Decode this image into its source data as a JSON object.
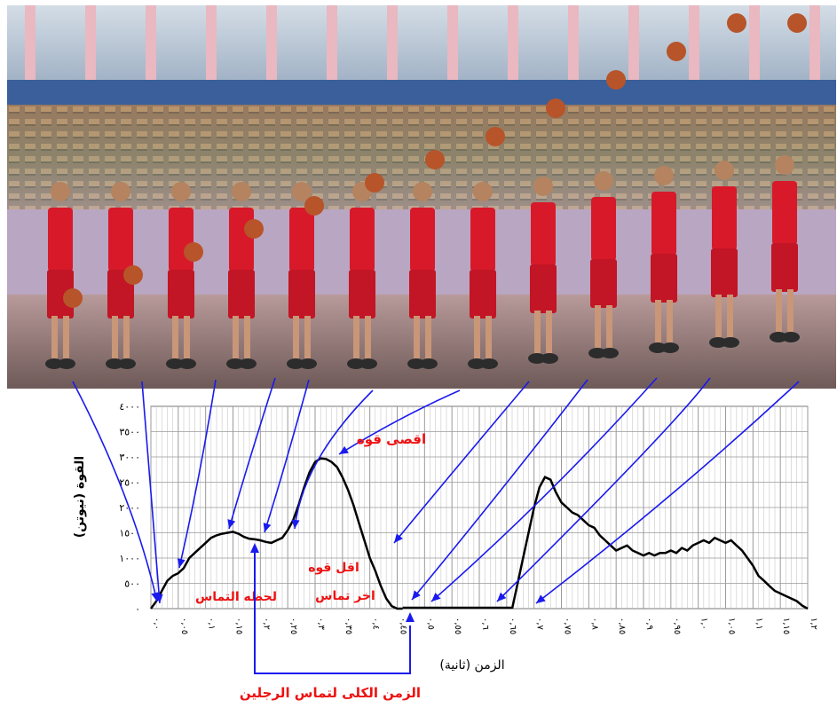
{
  "colors": {
    "arrow": "#1a1aee",
    "annotation": "#ee1111",
    "curve": "#000000",
    "grid_major": "#9a9a9a",
    "grid_minor": "#c8c8c8",
    "jersey": "#d8192a",
    "photo_wall": "#cfd6de"
  },
  "photo": {
    "player_count": 13,
    "description_icon": "basketball-jump-shot-sequence"
  },
  "chart_data": {
    "type": "line",
    "ylabel": "القوة (نيوتن)",
    "xlabel": "الزمن (ثانية)",
    "y_ticks": [
      "٠",
      "٥٠٠",
      "١٠٠٠",
      "١٥٠٠",
      "٢٠٠٠",
      "٢٥٠٠",
      "٣٠٠٠",
      "٣٥٠٠",
      "٤٠٠٠"
    ],
    "x_ticks": [
      "٠,٠",
      "٠,٠٥",
      "٠,١",
      "٠,١٥",
      "٠,٢",
      "٠,٢٥",
      "٠,٣",
      "٠,٣٥",
      "٠,٤",
      "٠,٤٥",
      "٠,٥",
      "٠,٥٥",
      "٠,٦",
      "٠,٦٥",
      "٠,٧",
      "٠,٧٥",
      "٠,٨",
      "٠,٨٥",
      "٠,٩",
      "٠,٩٥",
      "١,٠",
      "١,٠٥",
      "١,١",
      "١,١٥",
      "١,٢"
    ],
    "ylim": [
      0,
      4000
    ],
    "xlim": [
      0,
      1.2
    ],
    "grid": true,
    "series": [
      {
        "segments": [
          {
            "x": [
              0.0,
              0.01,
              0.02,
              0.03,
              0.04,
              0.05,
              0.06,
              0.07,
              0.08,
              0.09,
              0.1,
              0.11,
              0.12,
              0.13,
              0.14,
              0.15,
              0.16,
              0.17,
              0.18,
              0.19,
              0.2,
              0.21,
              0.22,
              0.23,
              0.24,
              0.25,
              0.26,
              0.27,
              0.28,
              0.29,
              0.3,
              0.31,
              0.32,
              0.33,
              0.34,
              0.35,
              0.36,
              0.37,
              0.38,
              0.39,
              0.4,
              0.41,
              0.42,
              0.43,
              0.44,
              0.45,
              0.46
            ],
            "y": [
              0,
              150,
              350,
              550,
              650,
              700,
              800,
              1000,
              1100,
              1200,
              1300,
              1400,
              1450,
              1480,
              1500,
              1520,
              1480,
              1420,
              1380,
              1370,
              1350,
              1320,
              1300,
              1350,
              1400,
              1550,
              1750,
              2050,
              2400,
              2700,
              2900,
              2970,
              2960,
              2900,
              2800,
              2600,
              2350,
              2050,
              1700,
              1350,
              1000,
              750,
              450,
              200,
              50,
              0,
              0
            ]
          },
          {
            "x": [
              0.66,
              0.67,
              0.68,
              0.69,
              0.7,
              0.71,
              0.72,
              0.73,
              0.74,
              0.75,
              0.76,
              0.77,
              0.78,
              0.79,
              0.8,
              0.81,
              0.82,
              0.83,
              0.84,
              0.85,
              0.86,
              0.87,
              0.88,
              0.89,
              0.9,
              0.91,
              0.92,
              0.93,
              0.94,
              0.95,
              0.96,
              0.97,
              0.98,
              0.99,
              1.0,
              1.01,
              1.02,
              1.03,
              1.04,
              1.05,
              1.06,
              1.07,
              1.08,
              1.09,
              1.1,
              1.11,
              1.12,
              1.13,
              1.14,
              1.15,
              1.16,
              1.17,
              1.18,
              1.19,
              1.2
            ],
            "y": [
              0,
              500,
              1000,
              1500,
              2000,
              2400,
              2600,
              2550,
              2300,
              2100,
              2000,
              1900,
              1850,
              1750,
              1650,
              1600,
              1450,
              1350,
              1250,
              1150,
              1200,
              1250,
              1150,
              1100,
              1050,
              1100,
              1050,
              1100,
              1100,
              1150,
              1100,
              1200,
              1150,
              1250,
              1300,
              1350,
              1300,
              1400,
              1350,
              1300,
              1350,
              1250,
              1150,
              1000,
              850,
              650,
              550,
              450,
              350,
              300,
              250,
              200,
              150,
              60,
              0
            ]
          }
        ]
      }
    ],
    "annotations": [
      {
        "text": "اقصى قوه"
      },
      {
        "text": "اقل قوه"
      },
      {
        "text": "لحظه التماس"
      },
      {
        "text": "اخر تماس"
      },
      {
        "text": "الزمن الكلى لتماس الرجلين"
      }
    ]
  }
}
